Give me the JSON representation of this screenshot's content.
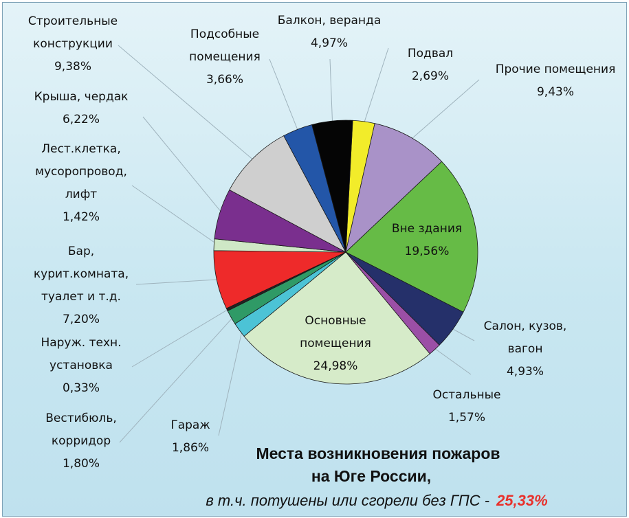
{
  "chart_data": {
    "type": "pie",
    "title_lines": [
      "Места возникновения пожаров",
      "на Юге России,"
    ],
    "subtitle": "в т.ч. потушены или сгорели без ГПС -",
    "subtitle_value": "25,33%",
    "subtitle_value_color": "#e8312c",
    "slices": [
      {
        "label_lines": [
          "Подвал"
        ],
        "value_text": "2,69%",
        "value": 2.69,
        "color": "#f2ec2a"
      },
      {
        "label_lines": [
          "Прочие помещения"
        ],
        "value_text": "9,43%",
        "value": 9.43,
        "color": "#a992c8"
      },
      {
        "label_lines": [
          "Вне здания"
        ],
        "value_text": "19,56%",
        "value": 19.56,
        "color": "#66bb46"
      },
      {
        "label_lines": [
          "Салон, кузов,",
          "вагон"
        ],
        "value_text": "4,93%",
        "value": 4.93,
        "color": "#25306a"
      },
      {
        "label_lines": [
          "Остальные"
        ],
        "value_text": "1,57%",
        "value": 1.57,
        "color": "#9b4fa6"
      },
      {
        "label_lines": [
          "Основные",
          "помещения"
        ],
        "value_text": "24,98%",
        "value": 24.98,
        "color": "#d6ebc9"
      },
      {
        "label_lines": [
          "Гараж"
        ],
        "value_text": "1,86%",
        "value": 1.86,
        "color": "#4cc3d6"
      },
      {
        "label_lines": [
          "Вестибюль,",
          "корридор"
        ],
        "value_text": "1,80%",
        "value": 1.8,
        "color": "#2f9a66"
      },
      {
        "label_lines": [
          "Наруж. техн.",
          "установка"
        ],
        "value_text": "0,33%",
        "value": 0.33,
        "color": "#222222"
      },
      {
        "label_lines": [
          "Бар,",
          "курит.комната,",
          "туалет и т.д."
        ],
        "value_text": "7,20%",
        "value": 7.2,
        "color": "#ee2a2a"
      },
      {
        "label_lines": [
          "Лест.клетка,",
          "мусоропровод,",
          "лифт"
        ],
        "value_text": "1,42%",
        "value": 1.42,
        "color": "#cfe8c6"
      },
      {
        "label_lines": [
          "Крыша, чердак"
        ],
        "value_text": "6,22%",
        "value": 6.22,
        "color": "#7a2f8e"
      },
      {
        "label_lines": [
          "Строительные",
          "конструкции"
        ],
        "value_text": "9,38%",
        "value": 9.38,
        "color": "#cfcfcf"
      },
      {
        "label_lines": [
          "Подсобные",
          "помещения"
        ],
        "value_text": "3,66%",
        "value": 3.66,
        "color": "#2356a8"
      },
      {
        "label_lines": [
          "Балкон, веранда"
        ],
        "value_text": "4,97%",
        "value": 4.97,
        "color": "#050505"
      }
    ]
  }
}
